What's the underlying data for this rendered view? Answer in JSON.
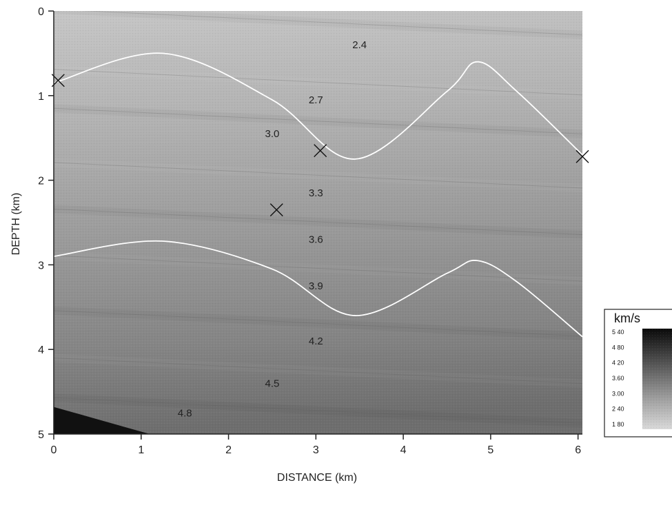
{
  "chart_data": {
    "type": "heatmap",
    "xlabel": "DISTANCE (km)",
    "ylabel": "DEPTH (km)",
    "xlim": [
      0,
      6.05
    ],
    "ylim": [
      0,
      5
    ],
    "y_inverted": true,
    "x_ticks": [
      0,
      1,
      2,
      3,
      4,
      5,
      6
    ],
    "y_ticks": [
      0,
      1,
      2,
      3,
      4,
      5
    ],
    "x_tick_labels": [
      "0",
      "1",
      "2",
      "3",
      "4",
      "5",
      "6"
    ],
    "y_tick_labels": [
      "0",
      "1",
      "2",
      "3",
      "4",
      "5"
    ],
    "colorbar": {
      "title": "km/s",
      "tick_labels": [
        "5 40",
        "4 80",
        "4 20",
        "3.60",
        "3.00",
        "2 40",
        "1 80"
      ],
      "vmin": 1.8,
      "vmax": 5.4
    },
    "contour_labels": [
      {
        "text": "2.4",
        "x": 3.5,
        "y": 0.4,
        "value": 2.4
      },
      {
        "text": "2.7",
        "x": 3.0,
        "y": 1.05,
        "value": 2.7
      },
      {
        "text": "3.0",
        "x": 2.5,
        "y": 1.45,
        "value": 3.0
      },
      {
        "text": "3.3",
        "x": 3.0,
        "y": 2.15,
        "value": 3.3
      },
      {
        "text": "3.6",
        "x": 3.0,
        "y": 2.7,
        "value": 3.6
      },
      {
        "text": "3.9",
        "x": 3.0,
        "y": 3.25,
        "value": 3.9
      },
      {
        "text": "4.2",
        "x": 3.0,
        "y": 3.9,
        "value": 4.2
      },
      {
        "text": "4.5",
        "x": 2.5,
        "y": 4.4,
        "value": 4.5
      },
      {
        "text": "4.8",
        "x": 1.5,
        "y": 4.75,
        "value": 4.8
      }
    ],
    "markers": [
      {
        "x": 0.05,
        "y": 0.82
      },
      {
        "x": 3.05,
        "y": 1.65
      },
      {
        "x": 2.55,
        "y": 2.35
      },
      {
        "x": 6.05,
        "y": 1.72
      }
    ],
    "white_curves": [
      {
        "x": [
          0,
          1.25,
          2.5,
          3.45,
          4.5,
          4.85,
          5.3,
          6.05
        ],
        "y": [
          0.85,
          0.5,
          1.05,
          1.75,
          0.95,
          0.6,
          0.95,
          1.7
        ]
      },
      {
        "x": [
          0,
          1.25,
          2.5,
          3.45,
          4.5,
          4.85,
          5.3,
          6.05
        ],
        "y": [
          2.9,
          2.72,
          3.05,
          3.6,
          3.1,
          2.95,
          3.2,
          3.85
        ]
      }
    ]
  }
}
